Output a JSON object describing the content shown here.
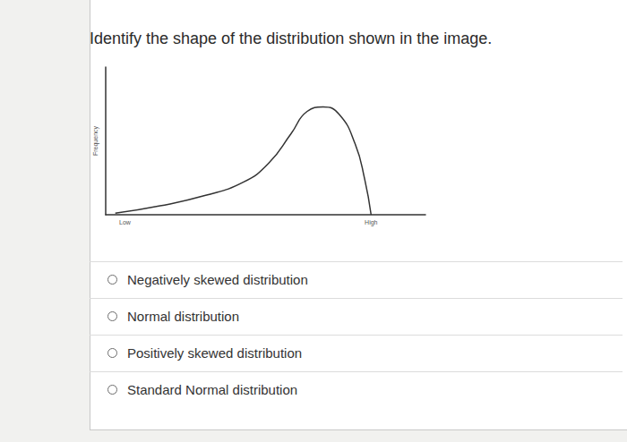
{
  "question": "Identify the shape of the distribution shown in the image.",
  "chart_data": {
    "type": "line",
    "ylabel": "Frequency",
    "x": [
      3,
      17,
      31,
      43,
      51,
      58,
      63,
      68,
      73,
      78,
      81,
      83
    ],
    "values": [
      1,
      6,
      13,
      22,
      35,
      55,
      70,
      73,
      68,
      48,
      24,
      0
    ],
    "xlim": [
      0,
      100
    ],
    "ylim": [
      0,
      100
    ],
    "xticks": [
      {
        "value": 6,
        "label": "Low"
      },
      {
        "value": 83,
        "label": "High"
      }
    ],
    "tick_labels": "x",
    "color": "#333333"
  },
  "options": [
    "Negatively skewed distribution",
    "Normal distribution",
    "Positively skewed distribution",
    "Standard Normal distribution"
  ]
}
